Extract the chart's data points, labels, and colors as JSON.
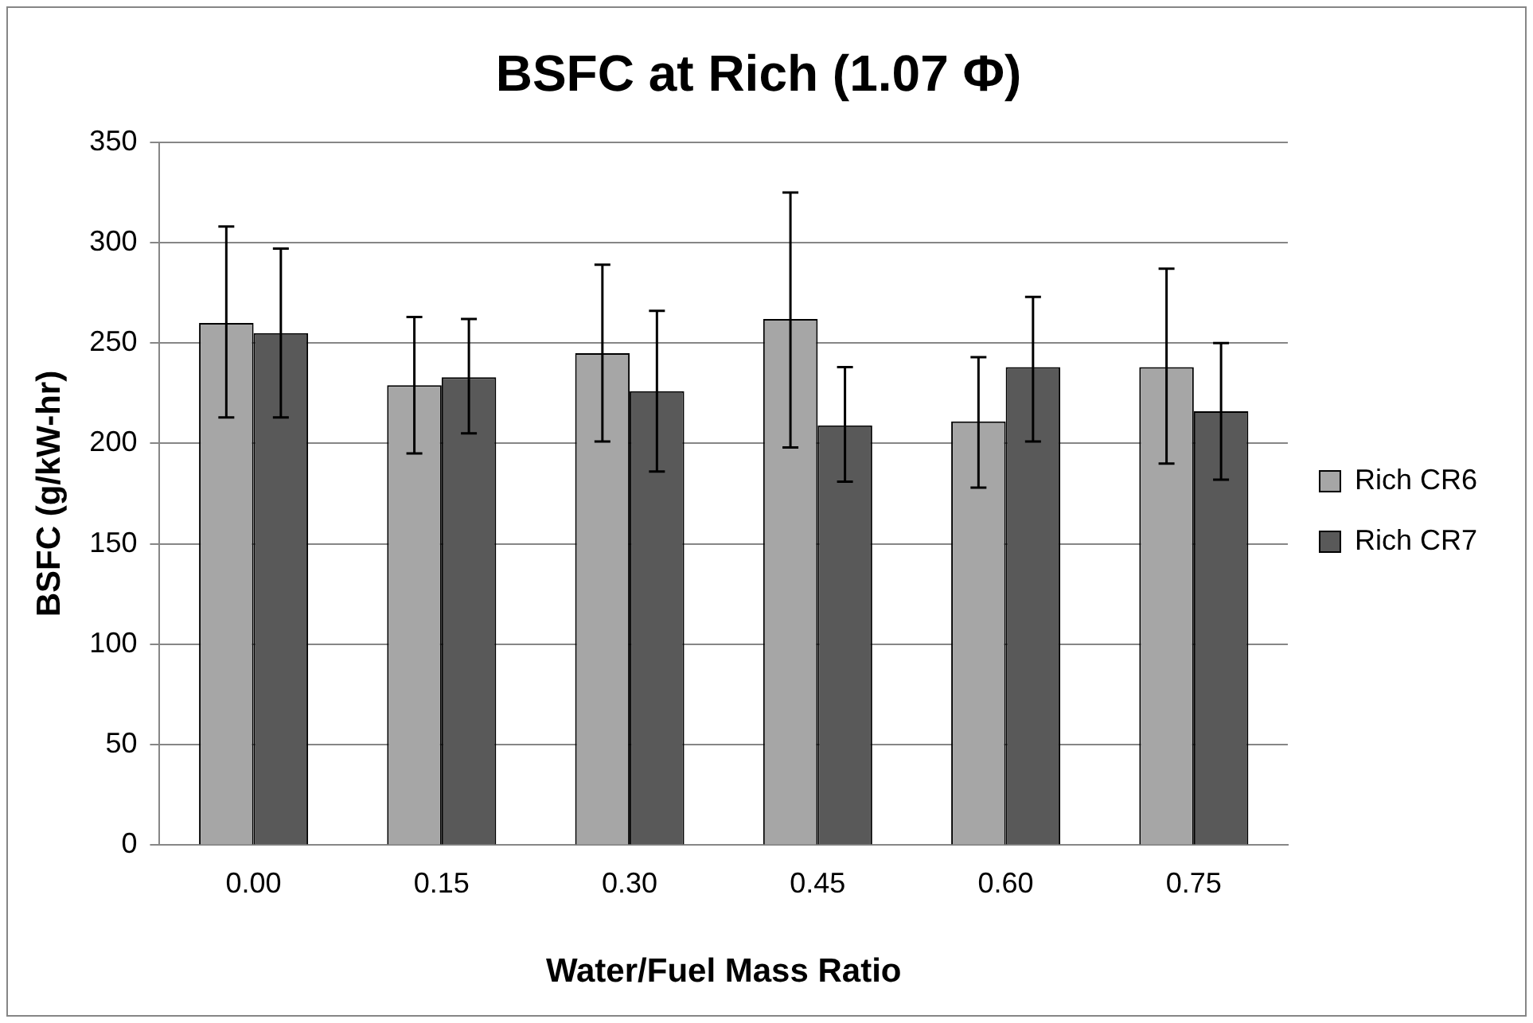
{
  "chart_data": {
    "type": "bar",
    "title": "BSFC at Rich (1.07 Φ)",
    "xlabel": "Water/Fuel Mass Ratio",
    "ylabel": "BSFC (g/kW-hr)",
    "categories": [
      "0.00",
      "0.15",
      "0.30",
      "0.45",
      "0.60",
      "0.75"
    ],
    "series": [
      {
        "name": "Rich CR6",
        "color": "#a6a6a6",
        "values": [
          260,
          229,
          245,
          262,
          211,
          238
        ],
        "errors": [
          [
            213,
            308
          ],
          [
            195,
            263
          ],
          [
            201,
            289
          ],
          [
            198,
            325
          ],
          [
            178,
            243
          ],
          [
            190,
            287
          ]
        ]
      },
      {
        "name": "Rich CR7",
        "color": "#595959",
        "values": [
          255,
          233,
          226,
          209,
          238,
          216
        ],
        "errors": [
          [
            213,
            297
          ],
          [
            205,
            262
          ],
          [
            186,
            266
          ],
          [
            181,
            238
          ],
          [
            201,
            273
          ],
          [
            182,
            250
          ]
        ]
      }
    ],
    "ylim": [
      0,
      350
    ],
    "yticks": [
      0,
      50,
      100,
      150,
      200,
      250,
      300,
      350
    ],
    "grid": "y",
    "legend": "right"
  }
}
